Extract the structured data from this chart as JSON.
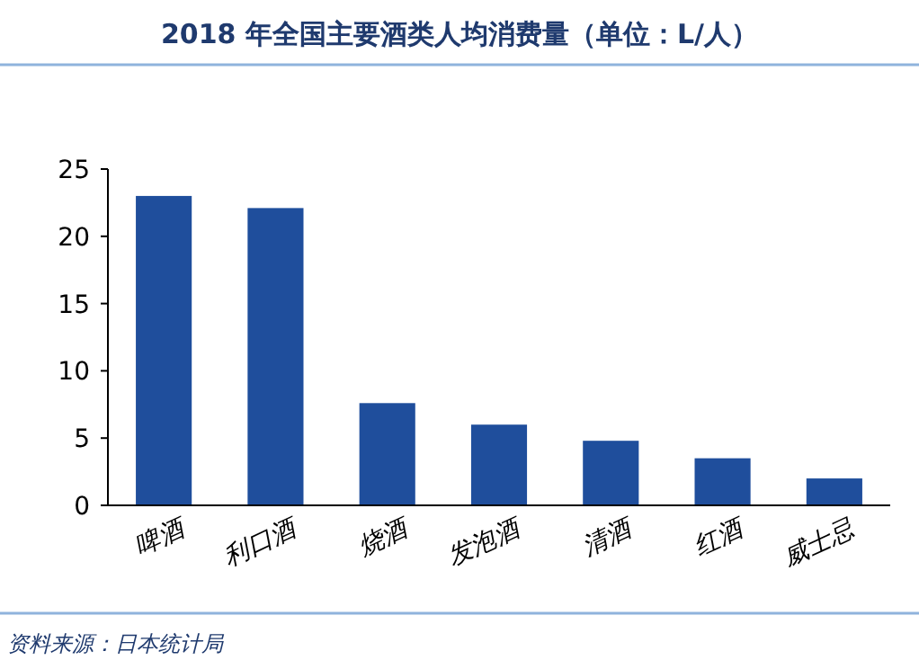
{
  "chart_data": {
    "type": "bar",
    "title": "2018 年全国主要酒类人均消费量（单位：L/人）",
    "categories": [
      "啤酒",
      "利口酒",
      "烧酒",
      "发泡酒",
      "清酒",
      "红酒",
      "威士忌"
    ],
    "values": [
      23.0,
      22.1,
      7.6,
      6.0,
      4.8,
      3.5,
      2.0
    ],
    "color": "#1f4e9c",
    "ylim": [
      0,
      25
    ],
    "yticks": [
      0,
      5,
      10,
      15,
      20,
      25
    ],
    "grid": false,
    "annotations": [
      "资料来源：日本统计局"
    ]
  }
}
